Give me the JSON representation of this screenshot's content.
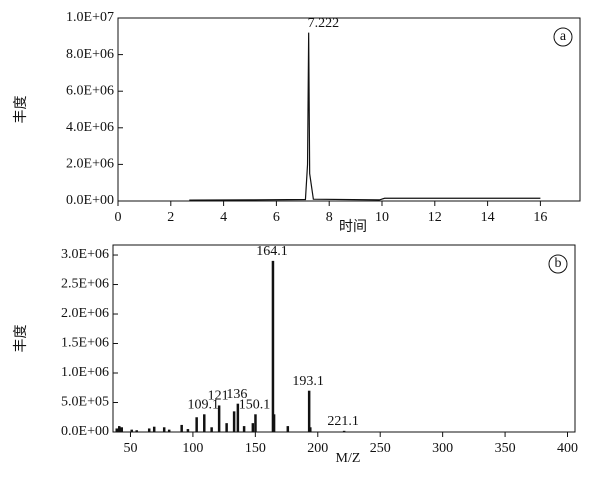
{
  "chart_data": [
    {
      "type": "line",
      "panel_label": "a",
      "x_label": "时间",
      "y_label": "丰度",
      "color": "#111111",
      "x": [
        2.7,
        5.0,
        7.1,
        7.18,
        7.222,
        7.26,
        7.4,
        9.9,
        10.1,
        16.0
      ],
      "values": [
        50000,
        60000,
        80000,
        2000000,
        9200000,
        1500000,
        100000,
        60000,
        150000,
        150000
      ],
      "xlim": [
        0,
        17.5
      ],
      "xticks": [
        0,
        2,
        4,
        6,
        8,
        10,
        12,
        14,
        16
      ],
      "ylim": [
        0,
        10000000
      ],
      "yticks": [
        {
          "value": 0,
          "label": "0.0E+00"
        },
        {
          "value": 2000000,
          "label": "2.0E+06"
        },
        {
          "value": 4000000,
          "label": "4.0E+06"
        },
        {
          "value": 6000000,
          "label": "6.0E+06"
        },
        {
          "value": 8000000,
          "label": "8.0E+06"
        },
        {
          "value": 10000000,
          "label": "1.0E+07"
        }
      ],
      "annotations": [
        {
          "x": 7.222,
          "y": 9200000
        }
      ]
    },
    {
      "type": "stem",
      "panel_label": "b",
      "x_label": "M/Z",
      "y_label": "丰度",
      "color": "#111111",
      "x": [
        39,
        41,
        43,
        51,
        55,
        65,
        69,
        77,
        81,
        91,
        96,
        103,
        109.1,
        115,
        121,
        127,
        133,
        136,
        141,
        148,
        150.1,
        164.1,
        165,
        176,
        193.1,
        194,
        221.1
      ],
      "values": [
        60000,
        100000,
        80000,
        40000,
        30000,
        60000,
        90000,
        80000,
        40000,
        120000,
        50000,
        250000,
        300000,
        80000,
        450000,
        150000,
        350000,
        480000,
        100000,
        150000,
        300000,
        2900000,
        300000,
        100000,
        700000,
        80000,
        20000
      ],
      "xlim": [
        36,
        406
      ],
      "xticks": [
        50,
        100,
        150,
        200,
        250,
        300,
        350,
        400
      ],
      "ylim": [
        0,
        3170000
      ],
      "yticks": [
        {
          "value": 0,
          "label": "0.0E+00"
        },
        {
          "value": 500000,
          "label": "5.0E+05"
        },
        {
          "value": 1000000,
          "label": "1.0E+06"
        },
        {
          "value": 1500000,
          "label": "1.5E+06"
        },
        {
          "value": 2000000,
          "label": "2.0E+06"
        },
        {
          "value": 2500000,
          "label": "2.5E+06"
        },
        {
          "value": 3000000,
          "label": "3.0E+06"
        }
      ],
      "annotations": [
        {
          "x": 109.1,
          "y": 300000
        },
        {
          "x": 121,
          "y": 450000
        },
        {
          "x": 136,
          "y": 480000
        },
        {
          "x": 150.1,
          "y": 300000
        },
        {
          "x": 164.1,
          "y": 2900000
        },
        {
          "x": 193.1,
          "y": 700000
        },
        {
          "x": 221.1,
          "y": 20000
        }
      ]
    }
  ]
}
